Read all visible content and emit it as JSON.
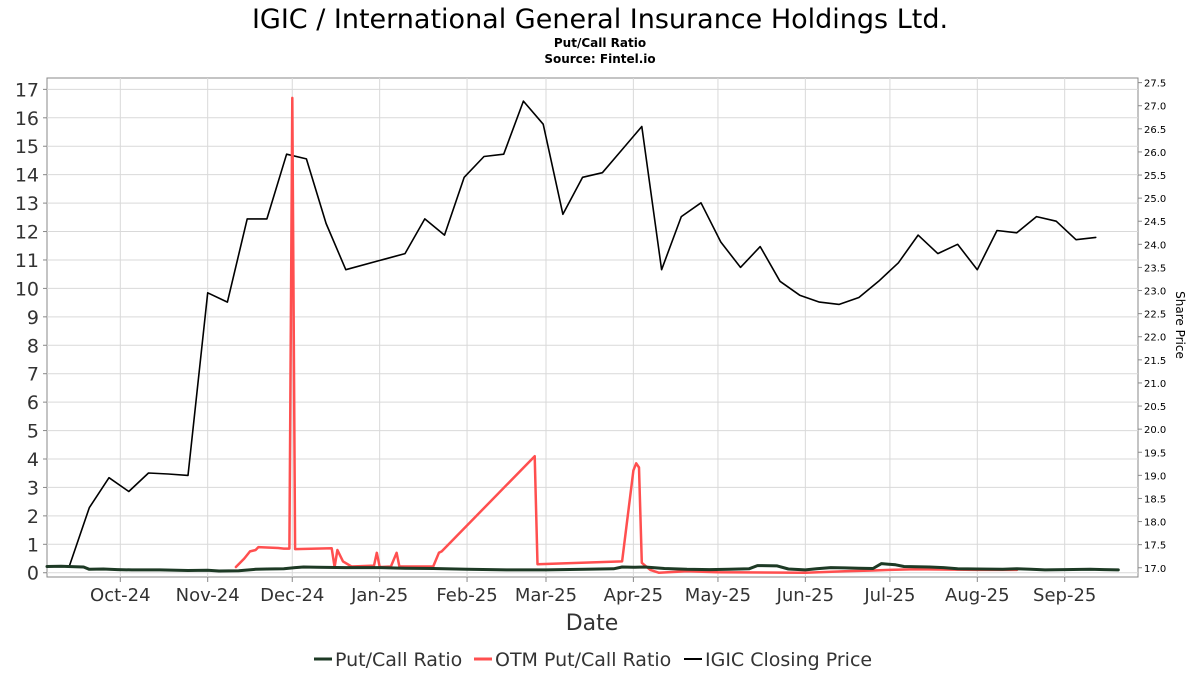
{
  "chart_data": {
    "type": "line",
    "title": "IGIC / International General Insurance Holdings Ltd.",
    "subtitle": "Put/Call Ratio",
    "source": "Source: Fintel.io",
    "xlabel": "Date",
    "ylabel_right": "Share Price",
    "x_range": [
      "2024-09-05",
      "2025-09-27"
    ],
    "x_ticks": [
      {
        "date": "2024-10-01",
        "label": "Oct-24"
      },
      {
        "date": "2024-11-01",
        "label": "Nov-24"
      },
      {
        "date": "2024-12-01",
        "label": "Dec-24"
      },
      {
        "date": "2025-01-01",
        "label": "Jan-25"
      },
      {
        "date": "2025-02-01",
        "label": "Feb-25"
      },
      {
        "date": "2025-03-01",
        "label": "Mar-25"
      },
      {
        "date": "2025-04-01",
        "label": "Apr-25"
      },
      {
        "date": "2025-05-01",
        "label": "May-25"
      },
      {
        "date": "2025-06-01",
        "label": "Jun-25"
      },
      {
        "date": "2025-07-01",
        "label": "Jul-25"
      },
      {
        "date": "2025-08-01",
        "label": "Aug-25"
      },
      {
        "date": "2025-09-01",
        "label": "Sep-25"
      }
    ],
    "y_left": {
      "min": -0.15,
      "max": 17.4,
      "ticks": [
        "0",
        "1",
        "2",
        "3",
        "4",
        "5",
        "6",
        "7",
        "8",
        "9",
        "10",
        "11",
        "12",
        "13",
        "14",
        "15",
        "16",
        "17"
      ]
    },
    "y_right": {
      "min": 16.8,
      "max": 27.6,
      "ticks": [
        "17.0",
        "17.5",
        "18.0",
        "18.5",
        "19.0",
        "19.5",
        "20.0",
        "20.5",
        "21.0",
        "21.5",
        "22.0",
        "22.5",
        "23.0",
        "23.5",
        "24.0",
        "24.5",
        "25.0",
        "25.5",
        "26.0",
        "26.5",
        "27.0",
        "27.5"
      ]
    },
    "grid": true,
    "legend_position": "bottom",
    "series": [
      {
        "name": "Put/Call Ratio",
        "color": "#1d3a25",
        "axis": "left",
        "points": [
          [
            "2024-09-05",
            0.22
          ],
          [
            "2024-09-10",
            0.23
          ],
          [
            "2024-09-15",
            0.21
          ],
          [
            "2024-09-18",
            0.2
          ],
          [
            "2024-09-20",
            0.12
          ],
          [
            "2024-09-25",
            0.13
          ],
          [
            "2024-09-30",
            0.11
          ],
          [
            "2024-10-05",
            0.1
          ],
          [
            "2024-10-15",
            0.1
          ],
          [
            "2024-10-25",
            0.08
          ],
          [
            "2024-11-01",
            0.09
          ],
          [
            "2024-11-05",
            0.06
          ],
          [
            "2024-11-12",
            0.07
          ],
          [
            "2024-11-18",
            0.12
          ],
          [
            "2024-11-22",
            0.13
          ],
          [
            "2024-11-28",
            0.14
          ],
          [
            "2024-12-02",
            0.18
          ],
          [
            "2024-12-05",
            0.2
          ],
          [
            "2024-12-10",
            0.19
          ],
          [
            "2024-12-20",
            0.18
          ],
          [
            "2025-01-01",
            0.18
          ],
          [
            "2025-01-10",
            0.16
          ],
          [
            "2025-01-20",
            0.15
          ],
          [
            "2025-02-01",
            0.12
          ],
          [
            "2025-02-15",
            0.1
          ],
          [
            "2025-03-01",
            0.1
          ],
          [
            "2025-03-15",
            0.12
          ],
          [
            "2025-03-25",
            0.14
          ],
          [
            "2025-03-28",
            0.2
          ],
          [
            "2025-04-01",
            0.19
          ],
          [
            "2025-04-05",
            0.2
          ],
          [
            "2025-04-08",
            0.18
          ],
          [
            "2025-04-12",
            0.15
          ],
          [
            "2025-04-20",
            0.12
          ],
          [
            "2025-04-28",
            0.11
          ],
          [
            "2025-05-05",
            0.12
          ],
          [
            "2025-05-12",
            0.14
          ],
          [
            "2025-05-15",
            0.25
          ],
          [
            "2025-05-22",
            0.24
          ],
          [
            "2025-05-26",
            0.13
          ],
          [
            "2025-06-01",
            0.1
          ],
          [
            "2025-06-05",
            0.14
          ],
          [
            "2025-06-10",
            0.18
          ],
          [
            "2025-06-15",
            0.17
          ],
          [
            "2025-06-20",
            0.16
          ],
          [
            "2025-06-25",
            0.15
          ],
          [
            "2025-06-28",
            0.32
          ],
          [
            "2025-07-03",
            0.28
          ],
          [
            "2025-07-06",
            0.22
          ],
          [
            "2025-07-15",
            0.2
          ],
          [
            "2025-07-20",
            0.18
          ],
          [
            "2025-07-25",
            0.14
          ],
          [
            "2025-08-01",
            0.13
          ],
          [
            "2025-08-10",
            0.12
          ],
          [
            "2025-08-15",
            0.14
          ],
          [
            "2025-08-20",
            0.12
          ],
          [
            "2025-08-25",
            0.1
          ],
          [
            "2025-09-01",
            0.11
          ],
          [
            "2025-09-10",
            0.12
          ],
          [
            "2025-09-15",
            0.11
          ],
          [
            "2025-09-20",
            0.1
          ]
        ]
      },
      {
        "name": "OTM Put/Call Ratio",
        "color": "#ff4f4f",
        "axis": "left",
        "points": [
          [
            "2024-11-11",
            0.2
          ],
          [
            "2024-11-14",
            0.5
          ],
          [
            "2024-11-16",
            0.75
          ],
          [
            "2024-11-18",
            0.8
          ],
          [
            "2024-11-19",
            0.9
          ],
          [
            "2024-11-26",
            0.87
          ],
          [
            "2024-11-28",
            0.85
          ],
          [
            "2024-11-30",
            0.85
          ],
          [
            "2024-12-01",
            16.7
          ],
          [
            "2024-12-02",
            0.83
          ],
          [
            "2024-12-15",
            0.86
          ],
          [
            "2024-12-16",
            0.2
          ],
          [
            "2024-12-17",
            0.8
          ],
          [
            "2024-12-19",
            0.4
          ],
          [
            "2024-12-22",
            0.22
          ],
          [
            "2024-12-30",
            0.25
          ],
          [
            "2024-12-31",
            0.7
          ],
          [
            "2025-01-01",
            0.2
          ],
          [
            "2025-01-05",
            0.22
          ],
          [
            "2025-01-07",
            0.7
          ],
          [
            "2025-01-08",
            0.22
          ],
          [
            "2025-01-20",
            0.22
          ],
          [
            "2025-01-22",
            0.7
          ],
          [
            "2025-01-23",
            0.75
          ],
          [
            "2025-02-25",
            4.1
          ],
          [
            "2025-02-26",
            0.3
          ],
          [
            "2025-03-28",
            0.4
          ],
          [
            "2025-04-01",
            3.6
          ],
          [
            "2025-04-02",
            3.85
          ],
          [
            "2025-04-03",
            3.7
          ],
          [
            "2025-04-04",
            0.35
          ],
          [
            "2025-04-07",
            0.1
          ],
          [
            "2025-04-10",
            0.0
          ],
          [
            "2025-04-20",
            0.05
          ],
          [
            "2025-05-01",
            0.02
          ],
          [
            "2025-06-01",
            0.0
          ],
          [
            "2025-06-15",
            0.05
          ],
          [
            "2025-06-25",
            0.08
          ],
          [
            "2025-07-01",
            0.1
          ],
          [
            "2025-07-10",
            0.12
          ],
          [
            "2025-08-01",
            0.1
          ],
          [
            "2025-08-15",
            0.1
          ]
        ]
      },
      {
        "name": "IGIC Closing Price",
        "color": "#000000",
        "axis": "right",
        "points": [
          [
            "2024-09-13",
            17.05
          ],
          [
            "2024-09-20",
            18.3
          ],
          [
            "2024-09-27",
            18.95
          ],
          [
            "2024-10-04",
            18.65
          ],
          [
            "2024-10-11",
            19.05
          ],
          [
            "2024-10-18",
            19.03
          ],
          [
            "2024-10-25",
            19.0
          ],
          [
            "2024-11-01",
            22.95
          ],
          [
            "2024-11-08",
            22.75
          ],
          [
            "2024-11-15",
            24.55
          ],
          [
            "2024-11-22",
            24.55
          ],
          [
            "2024-11-29",
            25.95
          ],
          [
            "2024-12-06",
            25.85
          ],
          [
            "2024-12-13",
            24.45
          ],
          [
            "2024-12-20",
            23.45
          ],
          [
            "2025-01-10",
            23.8
          ],
          [
            "2025-01-17",
            24.55
          ],
          [
            "2025-01-24",
            24.2
          ],
          [
            "2025-01-31",
            25.45
          ],
          [
            "2025-02-07",
            25.9
          ],
          [
            "2025-02-14",
            25.95
          ],
          [
            "2025-02-21",
            27.1
          ],
          [
            "2025-02-28",
            26.6
          ],
          [
            "2025-03-07",
            24.65
          ],
          [
            "2025-03-14",
            25.45
          ],
          [
            "2025-03-21",
            25.55
          ],
          [
            "2025-03-28",
            26.05
          ],
          [
            "2025-04-04",
            26.55
          ],
          [
            "2025-04-11",
            23.45
          ],
          [
            "2025-04-18",
            24.6
          ],
          [
            "2025-04-25",
            24.9
          ],
          [
            "2025-05-02",
            24.05
          ],
          [
            "2025-05-09",
            23.5
          ],
          [
            "2025-05-16",
            23.95
          ],
          [
            "2025-05-23",
            23.2
          ],
          [
            "2025-05-30",
            22.9
          ],
          [
            "2025-06-06",
            22.75
          ],
          [
            "2025-06-13",
            22.7
          ],
          [
            "2025-06-20",
            22.85
          ],
          [
            "2025-06-27",
            23.2
          ],
          [
            "2025-07-04",
            23.6
          ],
          [
            "2025-07-11",
            24.2
          ],
          [
            "2025-07-18",
            23.8
          ],
          [
            "2025-07-25",
            24.0
          ],
          [
            "2025-08-01",
            23.45
          ],
          [
            "2025-08-08",
            24.3
          ],
          [
            "2025-08-15",
            24.25
          ],
          [
            "2025-08-22",
            24.6
          ],
          [
            "2025-08-29",
            24.5
          ],
          [
            "2025-09-05",
            24.1
          ],
          [
            "2025-09-12",
            24.15
          ]
        ]
      }
    ]
  }
}
